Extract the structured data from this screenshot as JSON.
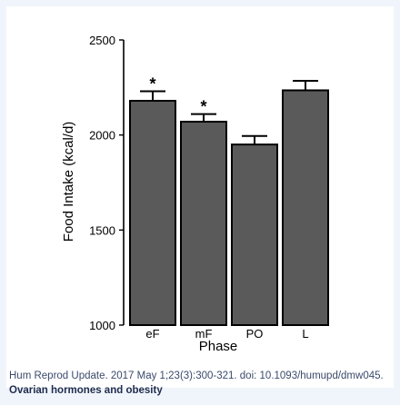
{
  "chart_data": {
    "type": "bar",
    "categories": [
      "eF",
      "mF",
      "PO",
      "L"
    ],
    "values": [
      2180,
      2070,
      1950,
      2235
    ],
    "errors": [
      50,
      40,
      45,
      50
    ],
    "significance": [
      "*",
      "*",
      "",
      ""
    ],
    "title": "",
    "xlabel": "Phase",
    "ylabel": "Food Intake (kcal/d)",
    "ylim": [
      1000,
      2500
    ],
    "yticks": [
      1000,
      1500,
      2000,
      2500
    ],
    "grid": false,
    "bar_color": "#5a5a5a"
  },
  "caption": {
    "citation": "Hum Reprod Update. 2017 May 1;23(3):300-321. doi: 10.1093/humupd/dmw045.",
    "title": "Ovarian hormones and obesity"
  }
}
